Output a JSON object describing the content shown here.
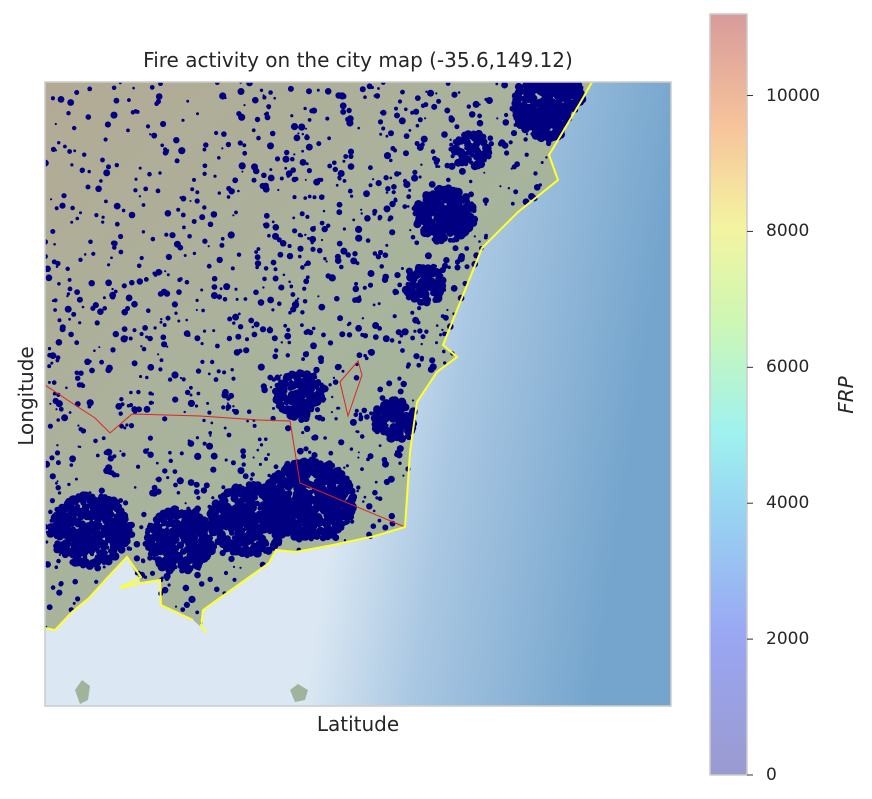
{
  "title": "Fire activity on the city map (-35.6,149.12)",
  "xlabel": "Latitude",
  "ylabel": "Longitude",
  "colorbar": {
    "label": "FRP",
    "ticks": [
      "0",
      "2000",
      "4000",
      "6000",
      "8000",
      "10000"
    ],
    "min": 0,
    "max": 11200,
    "colormap": "jet",
    "alpha": 0.4
  },
  "colors": {
    "fire_points": "#000080",
    "coastline": "#ffff33",
    "act_border": "#dd2222",
    "ocean": "#7aa8cf",
    "land_inland": "#b6ad98",
    "land_coastal": "#9fb49a",
    "frame": "#cccccc"
  }
}
